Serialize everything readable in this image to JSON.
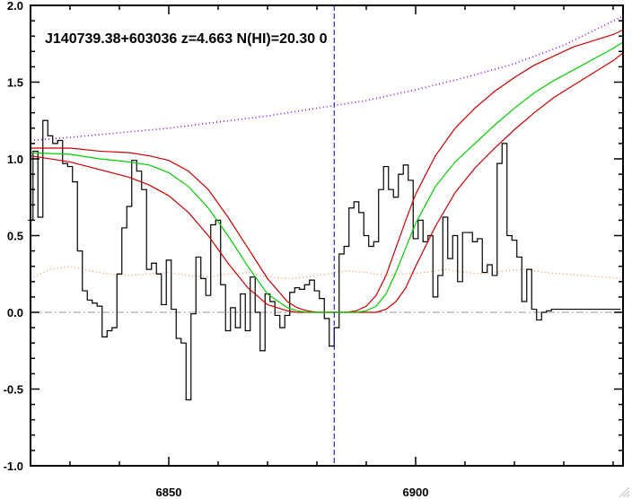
{
  "chart_data": {
    "type": "line",
    "title": "J140739.38+603036 z=4.663 N(HI)=20.30 0",
    "xlabel": "",
    "ylabel": "",
    "xlim": [
      6822,
      6942
    ],
    "ylim": [
      -1.0,
      2.0
    ],
    "x_ticks": [
      6850,
      6900
    ],
    "y_ticks": [
      -1.0,
      -0.5,
      0.0,
      0.5,
      1.0,
      1.5,
      2.0
    ],
    "y_tick_labels": [
      "-1.0",
      "-0.5",
      "0.0",
      "0.5",
      "1.0",
      "1.5",
      "2.0"
    ],
    "marker_line_x": 6883.5,
    "zero_line_y": 0.0,
    "colors": {
      "flux": "#000000",
      "model": "#00cc00",
      "model_bounds": "#cc0000",
      "continuum": "#8800ff",
      "error": "#ee8844",
      "marker": "#0000cc",
      "zero_line": "#999999"
    },
    "series": [
      {
        "role": "flux",
        "style": "steps",
        "x": [
          6822,
          6823,
          6824,
          6825,
          6826,
          6827,
          6828,
          6829,
          6830,
          6831,
          6832,
          6833,
          6834,
          6835,
          6836,
          6837,
          6838,
          6839,
          6840,
          6841,
          6842,
          6843,
          6844,
          6845,
          6846,
          6847,
          6848,
          6849,
          6850,
          6851,
          6852,
          6853,
          6854,
          6855,
          6856,
          6857,
          6858,
          6859,
          6860,
          6861,
          6862,
          6863,
          6864,
          6865,
          6866,
          6867,
          6868,
          6869,
          6870,
          6871,
          6872,
          6873,
          6874,
          6875,
          6876,
          6877,
          6878,
          6879,
          6880,
          6881,
          6882,
          6883,
          6884,
          6885,
          6886,
          6887,
          6888,
          6889,
          6890,
          6891,
          6892,
          6893,
          6894,
          6895,
          6896,
          6897,
          6898,
          6899,
          6900,
          6901,
          6902,
          6903,
          6904,
          6905,
          6906,
          6907,
          6908,
          6909,
          6910,
          6911,
          6912,
          6913,
          6914,
          6915,
          6916,
          6917,
          6918,
          6919,
          6920,
          6921,
          6922,
          6923,
          6924,
          6925,
          6926,
          6927,
          6928,
          6929,
          6930,
          6931,
          6932,
          6933,
          6934,
          6935,
          6936,
          6937,
          6938,
          6939,
          6940,
          6941
        ],
        "y": [
          0.6,
          1.05,
          0.62,
          1.25,
          1.15,
          1.1,
          1.12,
          0.97,
          0.95,
          0.85,
          0.4,
          0.14,
          0.08,
          0.06,
          0.04,
          -0.16,
          -0.12,
          -0.1,
          0.25,
          0.55,
          0.69,
          0.99,
          0.92,
          0.8,
          0.28,
          0.32,
          0.25,
          0.05,
          0.34,
          0.02,
          -0.17,
          -0.2,
          -0.57,
          -0.01,
          0.36,
          0.22,
          0.11,
          0.57,
          0.6,
          0.18,
          -0.12,
          0.03,
          -0.1,
          0.12,
          -0.12,
          0.23,
          0.0,
          -0.25,
          0.12,
          0.07,
          -0.02,
          -0.1,
          -0.02,
          0.13,
          0.16,
          0.15,
          0.18,
          0.21,
          0.14,
          0.09,
          -0.04,
          -0.22,
          -0.1,
          0.38,
          0.43,
          0.68,
          0.72,
          0.65,
          0.5,
          0.43,
          0.46,
          0.8,
          0.95,
          0.8,
          0.75,
          0.9,
          0.96,
          0.86,
          0.48,
          0.6,
          0.46,
          0.5,
          0.1,
          0.24,
          0.62,
          0.35,
          0.5,
          0.2,
          0.52,
          0.52,
          0.46,
          0.48,
          0.26,
          0.31,
          0.24,
          0.97,
          1.1,
          0.5,
          0.47,
          0.36,
          0.07,
          0.28,
          0.02,
          -0.05,
          0.0,
          0.01,
          0.02,
          0.02,
          0.02,
          0.02,
          0.02,
          0.02,
          0.02,
          0.02,
          0.02,
          0.02,
          0.02,
          0.02,
          0.02,
          0.02
        ]
      },
      {
        "role": "continuum",
        "style": "dotted",
        "x": [
          6822,
          6830,
          6840,
          6850,
          6860,
          6870,
          6880,
          6890,
          6900,
          6910,
          6920,
          6930,
          6942
        ],
        "y": [
          1.12,
          1.14,
          1.17,
          1.2,
          1.24,
          1.28,
          1.33,
          1.38,
          1.45,
          1.53,
          1.62,
          1.74,
          1.93
        ]
      },
      {
        "role": "error",
        "style": "dotted",
        "x": [
          6822,
          6826,
          6830,
          6834,
          6838,
          6842,
          6846,
          6850,
          6854,
          6858,
          6862,
          6866,
          6870,
          6874,
          6878,
          6882,
          6886,
          6890,
          6894,
          6898,
          6902,
          6906,
          6910,
          6914,
          6918,
          6922,
          6926,
          6930,
          6934,
          6938,
          6942
        ],
        "y": [
          0.22,
          0.28,
          0.3,
          0.27,
          0.25,
          0.24,
          0.25,
          0.26,
          0.24,
          0.23,
          0.25,
          0.26,
          0.23,
          0.22,
          0.23,
          0.25,
          0.27,
          0.26,
          0.24,
          0.25,
          0.26,
          0.28,
          0.26,
          0.25,
          0.27,
          0.28,
          0.26,
          0.25,
          0.24,
          0.23,
          0.22
        ]
      },
      {
        "role": "model",
        "x": [
          6822,
          6830,
          6836,
          6842,
          6846,
          6850,
          6854,
          6858,
          6862,
          6866,
          6870,
          6874,
          6876,
          6878,
          6880,
          6882,
          6884,
          6886,
          6888,
          6890,
          6892,
          6894,
          6896,
          6898,
          6900,
          6904,
          6908,
          6912,
          6916,
          6920,
          6924,
          6928,
          6932,
          6936,
          6940,
          6942
        ],
        "y": [
          1.04,
          1.03,
          1.0,
          0.98,
          0.96,
          0.91,
          0.82,
          0.68,
          0.5,
          0.3,
          0.12,
          0.03,
          0.01,
          0.0,
          0.0,
          0.0,
          0.0,
          0.0,
          0.0,
          0.01,
          0.04,
          0.12,
          0.26,
          0.42,
          0.58,
          0.82,
          0.98,
          1.1,
          1.22,
          1.33,
          1.43,
          1.51,
          1.58,
          1.65,
          1.72,
          1.76
        ]
      },
      {
        "role": "model_upper",
        "x": [
          6822,
          6830,
          6836,
          6842,
          6846,
          6850,
          6854,
          6858,
          6862,
          6866,
          6870,
          6874,
          6876,
          6878,
          6880,
          6882,
          6884,
          6886,
          6888,
          6890,
          6892,
          6894,
          6896,
          6898,
          6900,
          6904,
          6908,
          6912,
          6916,
          6920,
          6924,
          6928,
          6932,
          6936,
          6940,
          6942
        ],
        "y": [
          1.07,
          1.07,
          1.05,
          1.04,
          1.02,
          0.99,
          0.92,
          0.8,
          0.62,
          0.42,
          0.22,
          0.07,
          0.03,
          0.01,
          0.0,
          0.0,
          0.0,
          0.0,
          0.01,
          0.04,
          0.11,
          0.24,
          0.42,
          0.6,
          0.77,
          1.02,
          1.2,
          1.33,
          1.44,
          1.53,
          1.61,
          1.67,
          1.73,
          1.77,
          1.81,
          1.84
        ]
      },
      {
        "role": "model_lower",
        "x": [
          6822,
          6830,
          6836,
          6842,
          6846,
          6850,
          6854,
          6858,
          6862,
          6866,
          6870,
          6874,
          6876,
          6878,
          6880,
          6882,
          6884,
          6886,
          6888,
          6890,
          6892,
          6894,
          6896,
          6898,
          6900,
          6904,
          6908,
          6912,
          6916,
          6920,
          6924,
          6928,
          6932,
          6936,
          6940,
          6942
        ],
        "y": [
          1.02,
          0.98,
          0.93,
          0.88,
          0.83,
          0.76,
          0.65,
          0.5,
          0.32,
          0.16,
          0.05,
          0.01,
          0.0,
          0.0,
          0.0,
          0.0,
          0.0,
          0.0,
          0.0,
          0.0,
          0.0,
          0.02,
          0.07,
          0.16,
          0.3,
          0.56,
          0.78,
          0.94,
          1.07,
          1.19,
          1.3,
          1.4,
          1.48,
          1.56,
          1.64,
          1.69
        ]
      }
    ]
  }
}
